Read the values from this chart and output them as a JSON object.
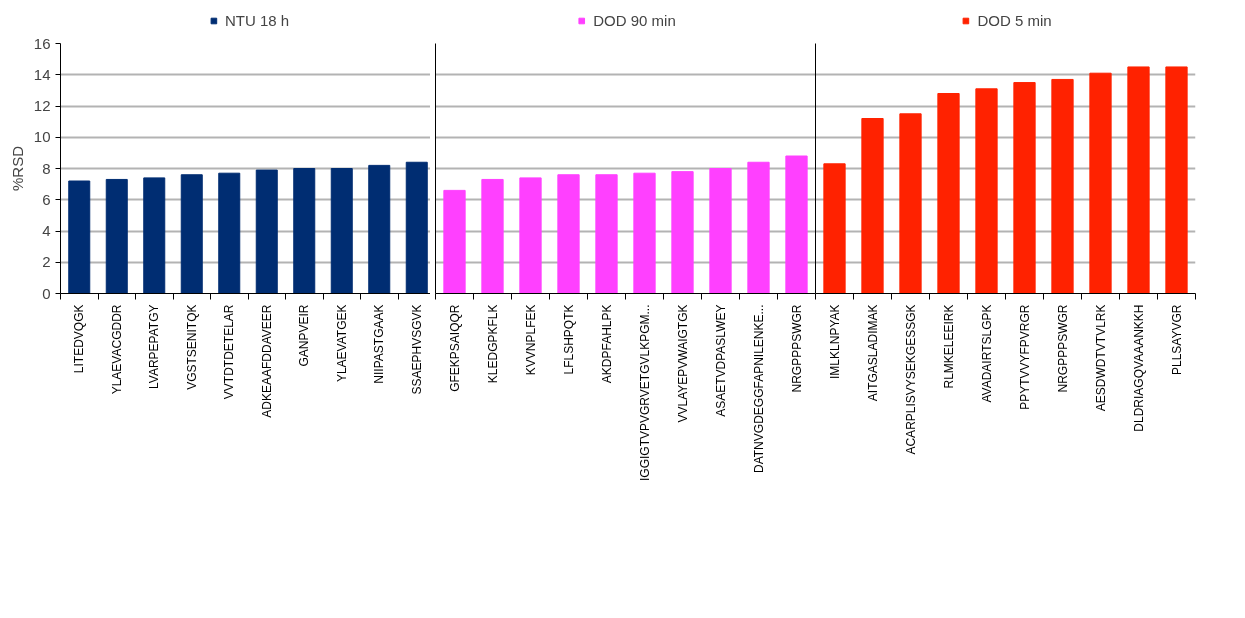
{
  "chart_data": [
    {
      "type": "bar",
      "ylabel": "%RSD",
      "categories": [
        "LITEDVQGK",
        "YLAEVACGDDR",
        "LVARPEPATGY",
        "VGSTSENITQK",
        "VVTDTDETELAR",
        "ADKEAAFDDAVEER",
        "GANPVEIR",
        "YLAEVATGEK",
        "NIIPASTGAAK",
        "SSAEPHVSGVK"
      ],
      "series": [
        {
          "name": "NTU 18 h",
          "color": "#002d72",
          "values": [
            7.2,
            7.3,
            7.4,
            7.6,
            7.7,
            7.9,
            8.0,
            8.0,
            8.2,
            8.4
          ]
        }
      ],
      "ylim": [
        0,
        16
      ],
      "yticks": [
        0,
        2,
        4,
        6,
        8,
        10,
        12,
        14,
        16
      ],
      "grid": "y",
      "legend": "top"
    },
    {
      "type": "bar",
      "categories": [
        "GFEKPSAIQQR",
        "KLEDGPKFLK",
        "KVVNPLFEK",
        "LFLSHPQTK",
        "AKDPFAHLPK",
        "IGGIGTVPVGRVETGVLKPGM...",
        "VVLAYEPVWAIGTGK",
        "ASAETVDPASLWEY",
        "DATNVGDEGGFAPNILENKE...",
        "NRGPPPSWGR"
      ],
      "series": [
        {
          "name": "DOD 90 min",
          "color": "#ff40ff",
          "values": [
            6.6,
            7.3,
            7.4,
            7.6,
            7.6,
            7.7,
            7.8,
            8.0,
            8.4,
            8.8
          ]
        }
      ],
      "ylim": [
        0,
        16
      ],
      "yticks": [
        0,
        2,
        4,
        6,
        8,
        10,
        12,
        14,
        16
      ],
      "grid": "y",
      "legend": "top",
      "tick_labels": "x"
    },
    {
      "type": "bar",
      "categories": [
        "IMLKLNPYAK",
        "AITGASLADIMAK",
        "ACARPLISVYSEKGESSGK",
        "RLMKELEEIRK",
        "AVADAIRTSLGPK",
        "PPYTVVYFPVRGR",
        "NRGPPPSWGR",
        "AESDWDTVTVLRK",
        "DLDRIAGQVAAANKKH",
        "PLLSAYVGR"
      ],
      "series": [
        {
          "name": "DOD 5 min",
          "color": "#ff2200",
          "values": [
            8.3,
            11.2,
            11.5,
            12.8,
            13.1,
            13.5,
            13.7,
            14.1,
            14.5,
            14.5
          ]
        }
      ],
      "ylim": [
        0,
        16
      ],
      "yticks": [
        0,
        2,
        4,
        6,
        8,
        10,
        12,
        14,
        16
      ],
      "grid": "y",
      "legend": "top",
      "tick_labels": "x"
    }
  ]
}
